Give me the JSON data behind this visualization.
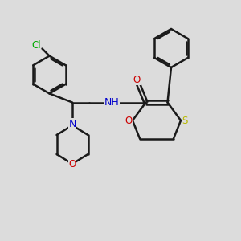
{
  "background_color": "#dcdcdc",
  "bond_color": "#1a1a1a",
  "bond_width": 1.8,
  "atom_colors": {
    "N": "#0000cc",
    "O": "#cc0000",
    "S": "#b8b800",
    "Cl": "#00aa00"
  },
  "font_size": 8.5,
  "figsize": [
    3.0,
    3.0
  ],
  "dpi": 100,
  "xlim": [
    0,
    10
  ],
  "ylim": [
    0,
    10
  ]
}
